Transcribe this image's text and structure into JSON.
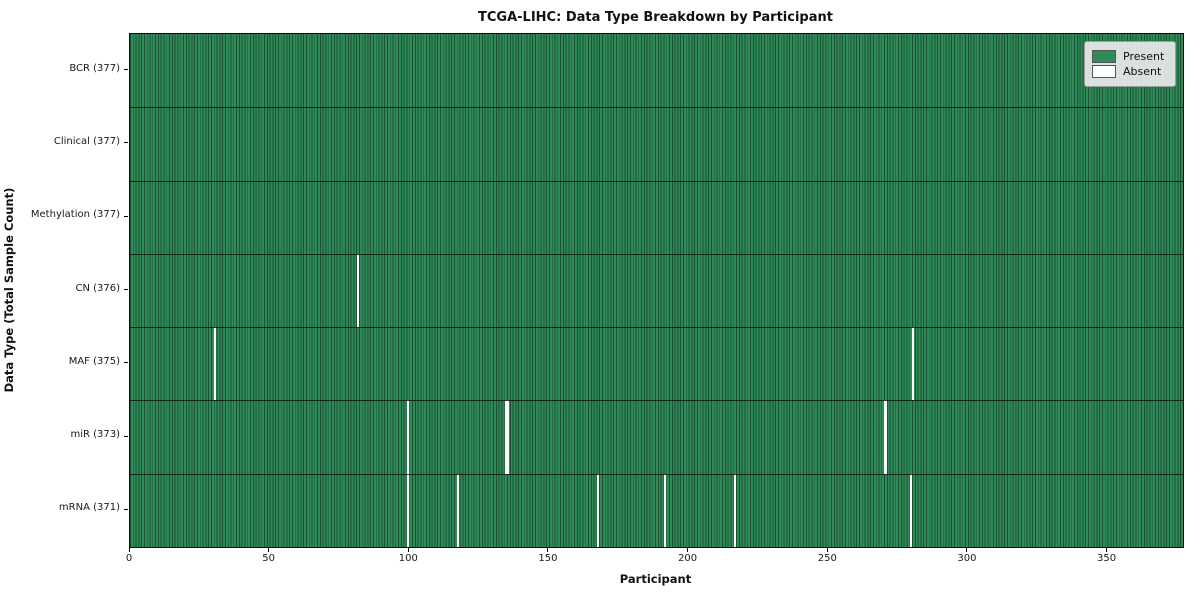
{
  "title": "TCGA-LIHC: Data Type Breakdown by Participant",
  "colors": {
    "present": "#2e8b57",
    "absent": "#ffffff",
    "cell_edge": "#1c4f33",
    "legend_bg": "#e9e9e9"
  },
  "legend": {
    "present_label": "Present",
    "absent_label": "Absent"
  },
  "chart_data": {
    "type": "heatmap",
    "title": "TCGA-LIHC: Data Type Breakdown by Participant",
    "xlabel": "Participant",
    "ylabel": "Data Type (Total Sample Count)",
    "x_ticks": [
      0,
      50,
      100,
      150,
      200,
      250,
      300,
      350
    ],
    "xlim": [
      0,
      377
    ],
    "n_participants": 377,
    "grid": false,
    "legend_position": "upper right",
    "legend_entries": [
      {
        "label": "Present",
        "color": "#2e8b57"
      },
      {
        "label": "Absent",
        "color": "#ffffff"
      }
    ],
    "rows": [
      {
        "data_type": "BCR",
        "label": "BCR (377)",
        "total": 377,
        "absent_participants": []
      },
      {
        "data_type": "Clinical",
        "label": "Clinical (377)",
        "total": 377,
        "absent_participants": []
      },
      {
        "data_type": "Methylation",
        "label": "Methylation (377)",
        "total": 377,
        "absent_participants": []
      },
      {
        "data_type": "CN",
        "label": "CN (376)",
        "total": 376,
        "absent_participants": [
          81
        ]
      },
      {
        "data_type": "MAF",
        "label": "MAF (375)",
        "total": 375,
        "absent_participants": [
          30,
          280
        ]
      },
      {
        "data_type": "miR",
        "label": "miR (373)",
        "total": 373,
        "absent_participants": [
          99,
          134,
          135,
          270
        ]
      },
      {
        "data_type": "mRNA",
        "label": "mRNA (371)",
        "total": 371,
        "absent_participants": [
          99,
          117,
          167,
          191,
          216,
          279
        ]
      }
    ]
  }
}
